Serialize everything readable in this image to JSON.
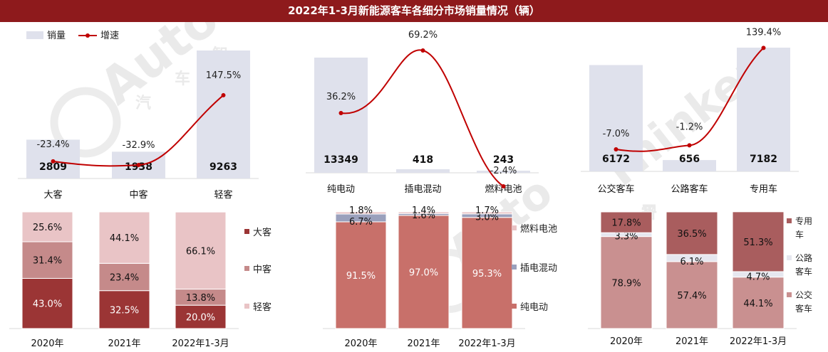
{
  "title": "2022年1-3月新能源客车各细分市场销量情况（辆）",
  "watermark": "Auto 汽 车 智 库 平 Thinker",
  "colors": {
    "bar": "#dfe1ec",
    "line": "#c00000",
    "dark": "#9b3535",
    "mid": "#c58a8a",
    "light": "#e9c4c6",
    "ev": "#c8706a",
    "phev": "#9aa0bc",
    "fc": "#e8c2c4",
    "bus_special": "#a95d5e",
    "bus_highway": "#e6e7ef",
    "bus_city": "#c99090"
  },
  "chart_data": [
    {
      "type": "bar+line",
      "categories": [
        "大客",
        "中客",
        "轻客"
      ],
      "series": [
        {
          "name": "销量",
          "type": "bar",
          "values": [
            2809,
            1938,
            9263
          ]
        },
        {
          "name": "增速",
          "type": "line",
          "values": [
            -23.4,
            -32.9,
            147.5
          ],
          "labels": [
            "-23.4%",
            "-32.9%",
            "147.5%"
          ]
        }
      ],
      "legend": "top-left"
    },
    {
      "type": "bar+line",
      "categories": [
        "纯电动",
        "插电混动",
        "燃料电池"
      ],
      "series": [
        {
          "type": "bar",
          "values": [
            13349,
            418,
            243
          ]
        },
        {
          "type": "line",
          "values": [
            36.2,
            69.2,
            -2.4
          ],
          "labels": [
            "36.2%",
            "69.2%",
            "-2.4%"
          ]
        }
      ]
    },
    {
      "type": "bar+line",
      "categories": [
        "公交客车",
        "公路客车",
        "专用车"
      ],
      "series": [
        {
          "type": "bar",
          "values": [
            6172,
            656,
            7182
          ]
        },
        {
          "type": "line",
          "values": [
            -7.0,
            -1.2,
            139.4
          ],
          "labels": [
            "-7.0%",
            "-1.2%",
            "139.4%"
          ]
        }
      ]
    },
    {
      "type": "stacked-bar",
      "categories": [
        "2020年",
        "2021年",
        "2022年1-3月"
      ],
      "series": [
        {
          "name": "大客",
          "values": [
            43.0,
            32.5,
            20.0
          ],
          "labels": [
            "43.0%",
            "32.5%",
            "20.0%"
          ]
        },
        {
          "name": "中客",
          "values": [
            31.4,
            23.4,
            13.8
          ],
          "labels": [
            "31.4%",
            "23.4%",
            "13.8%"
          ]
        },
        {
          "name": "轻客",
          "values": [
            25.6,
            44.1,
            66.1
          ],
          "labels": [
            "25.6%",
            "44.1%",
            "66.1%"
          ]
        }
      ],
      "legend": "right"
    },
    {
      "type": "stacked-bar",
      "categories": [
        "2020年",
        "2021年",
        "2022年1-3月"
      ],
      "series": [
        {
          "name": "纯电动",
          "values": [
            91.5,
            97.0,
            95.3
          ],
          "labels": [
            "91.5%",
            "97.0%",
            "95.3%"
          ]
        },
        {
          "name": "插电混动",
          "values": [
            6.7,
            1.6,
            3.0
          ],
          "labels": [
            "6.7%",
            "1.6%",
            "3.0%"
          ]
        },
        {
          "name": "燃料电池",
          "values": [
            1.8,
            1.4,
            1.7
          ],
          "labels": [
            "1.8%",
            "1.4%",
            "1.7%"
          ]
        }
      ],
      "legend": "right"
    },
    {
      "type": "stacked-bar",
      "categories": [
        "2020年",
        "2021年",
        "2022年1-3月"
      ],
      "series": [
        {
          "name": "公交客车",
          "values": [
            78.9,
            57.4,
            44.1
          ],
          "labels": [
            "78.9%",
            "57.4%",
            "44.1%"
          ]
        },
        {
          "name": "公路客车",
          "values": [
            3.3,
            6.1,
            4.7
          ],
          "labels": [
            "3.3%",
            "6.1%",
            "4.7%"
          ]
        },
        {
          "name": "专用车",
          "values": [
            17.8,
            36.5,
            51.3
          ],
          "labels": [
            "17.8%",
            "36.5%",
            "51.3%"
          ]
        }
      ],
      "legend": "right"
    }
  ]
}
